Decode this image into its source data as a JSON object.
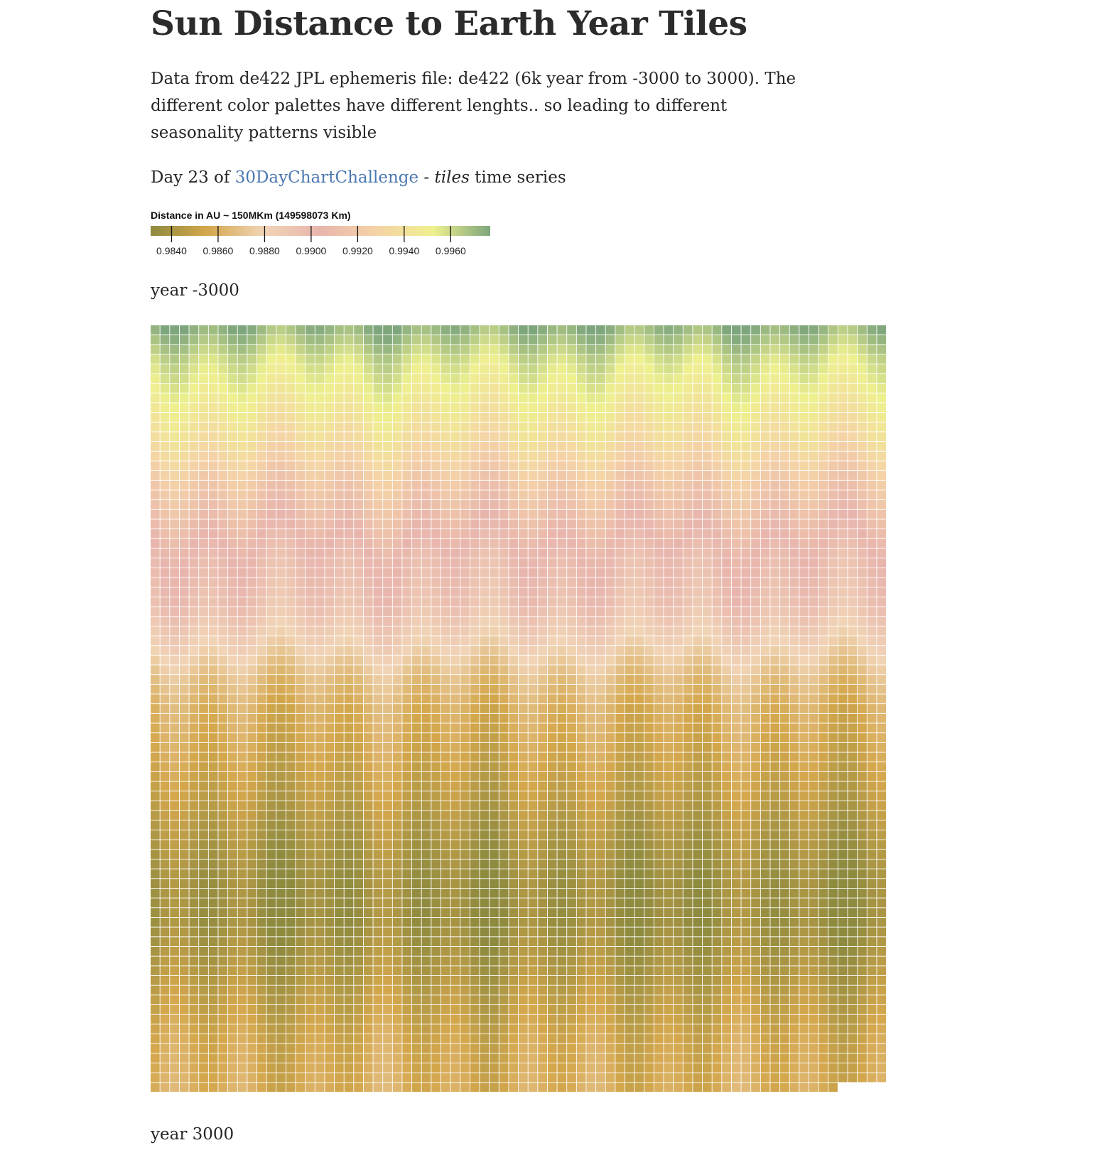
{
  "header": {
    "title": "Sun Distance to Earth Year Tiles",
    "description": "Data from de422 JPL ephemeris file: de422 (6k year from -3000 to 3000). The different color palettes have different lenghts.. so leading to different seasonality patterns visible",
    "day_prefix": "Day 23 of ",
    "challenge_link": "30DayChartChallenge",
    "dash": " - ",
    "tiles_word": "tiles",
    "time_series": " time series"
  },
  "labels": {
    "year_start": "year -3000",
    "year_end": "year 3000"
  },
  "chart_data": {
    "type": "heatmap",
    "title": "Sun Distance to Earth Year Tiles",
    "legend": {
      "title": "Distance in AU ~ 150MKm (149598073 Km)",
      "ticks": [
        "0.9840",
        "0.9860",
        "0.9880",
        "0.9900",
        "0.9920",
        "0.9940",
        "0.9960"
      ],
      "tick_values": [
        0.984,
        0.986,
        0.988,
        0.99,
        0.992,
        0.994,
        0.996
      ],
      "domain": [
        0.9831,
        0.9977
      ],
      "palette": [
        "#8e8a3e",
        "#d4a74c",
        "#f1d4b6",
        "#e8b5ad",
        "#f5d3a6",
        "#eef08e",
        "#7ea67c"
      ]
    },
    "grid": {
      "columns": 76,
      "rows": 79,
      "last_row_tiles": 71,
      "fill_order": "column-major, each column = consecutive years"
    },
    "row_distance_profile": [
      [
        0,
        0.9972
      ],
      [
        0.04,
        0.9958
      ],
      [
        0.08,
        0.995
      ],
      [
        0.12,
        0.9942
      ],
      [
        0.16,
        0.9932
      ],
      [
        0.2,
        0.992
      ],
      [
        0.26,
        0.9908
      ],
      [
        0.3,
        0.99
      ],
      [
        0.36,
        0.9895
      ],
      [
        0.42,
        0.988
      ],
      [
        0.46,
        0.9868
      ],
      [
        0.5,
        0.986
      ],
      [
        0.56,
        0.9855
      ],
      [
        0.62,
        0.9848
      ],
      [
        0.67,
        0.9842
      ],
      [
        0.72,
        0.9837
      ],
      [
        0.78,
        0.9836
      ],
      [
        0.82,
        0.984
      ],
      [
        0.88,
        0.9848
      ],
      [
        0.94,
        0.9855
      ],
      [
        1.0,
        0.9858
      ]
    ]
  }
}
